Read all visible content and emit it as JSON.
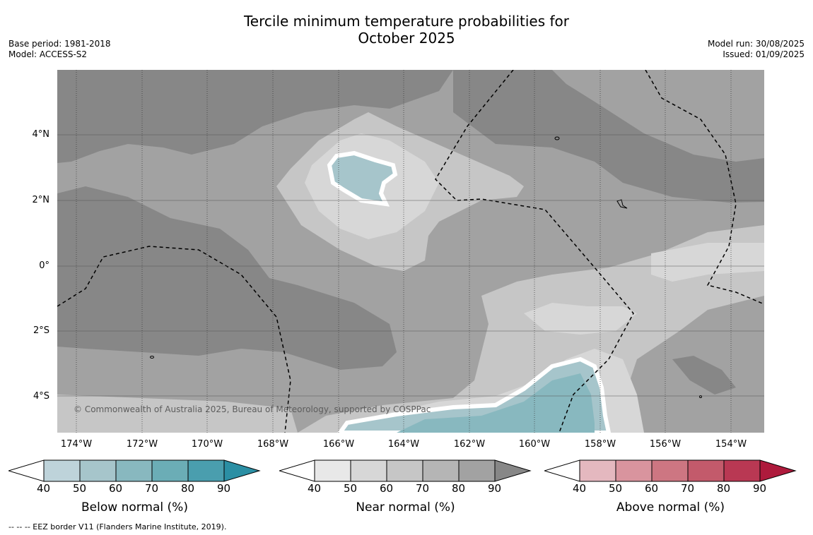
{
  "title_line1": "Tercile minimum temperature probabilities for",
  "title_line2": "October 2025",
  "base_period": "Base period: 1981-2018",
  "model": "Model: ACCESS-S2",
  "model_run": "Model run: 30/08/2025",
  "issued": "Issued: 01/09/2025",
  "lat_labels": [
    "4°N",
    "2°N",
    "0°",
    "2°S",
    "4°S"
  ],
  "lon_labels": [
    "174°W",
    "172°W",
    "170°W",
    "168°W",
    "166°W",
    "164°W",
    "162°W",
    "160°W",
    "158°W",
    "156°W",
    "154°W"
  ],
  "watermark": "© Commonwealth of Australia 2025, Bureau of Meteorology, supported by COSPPac",
  "colorbars": [
    {
      "label": "Below normal (%)",
      "ticks": [
        "40",
        "50",
        "60",
        "70",
        "80",
        "90"
      ],
      "colors": [
        "#bed3da",
        "#a6c5cb",
        "#88b8bf",
        "#6badb6",
        "#4a9eae",
        "#2b8fa4"
      ]
    },
    {
      "label": "Near normal (%)",
      "ticks": [
        "40",
        "50",
        "60",
        "70",
        "80",
        "90"
      ],
      "colors": [
        "#e8e8e8",
        "#d7d7d7",
        "#c6c6c6",
        "#b5b5b5",
        "#a2a2a2",
        "#878787"
      ]
    },
    {
      "label": "Above normal (%)",
      "ticks": [
        "40",
        "50",
        "60",
        "70",
        "80",
        "90"
      ],
      "colors": [
        "#e4b8bf",
        "#d9949e",
        "#cd7682",
        "#c35a6b",
        "#b93853",
        "#ae1a3c"
      ]
    }
  ],
  "footer": "--  --  -- EEZ border V11 (Flanders Marine Institute, 2019)."
}
